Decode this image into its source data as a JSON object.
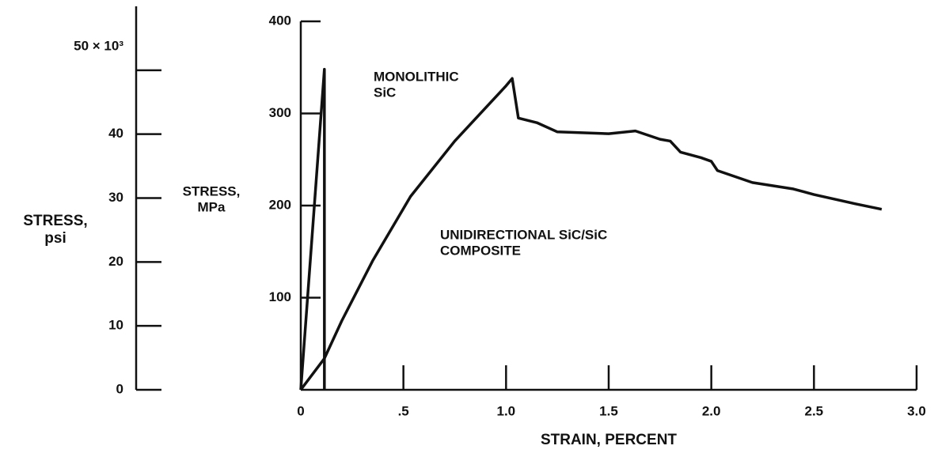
{
  "chart_data": {
    "type": "line",
    "xlabel": "STRAIN, PERCENT",
    "ylabel": [
      "STRESS,",
      "MPa"
    ],
    "y2label": [
      "STRESS,",
      "psi"
    ],
    "xlim": [
      0,
      3.0
    ],
    "xticks": [
      0,
      {
        "value": 0.5,
        "label": ".5"
      },
      {
        "value": 1.0,
        "label": "1.0"
      },
      1.5,
      {
        "value": 2.0,
        "label": "2.0"
      },
      2.5,
      {
        "value": 3.0,
        "label": "3.0"
      }
    ],
    "ylim": [
      0,
      400
    ],
    "yticks": [
      100,
      200,
      300,
      400
    ],
    "y2lim": [
      0,
      60
    ],
    "y2ticks": [
      0,
      10,
      20,
      30,
      40,
      {
        "value": 50,
        "label": "50 × 10³"
      }
    ],
    "series": [
      {
        "color": "#111111",
        "x": [
          0,
          0.115,
          0.115
        ],
        "values": [
          0,
          348,
          0
        ]
      },
      {
        "color": "#111111",
        "x": [
          0,
          0.115,
          0.2,
          0.35,
          0.535,
          0.75,
          1.0,
          1.03,
          1.06,
          1.15,
          1.25,
          1.5,
          1.63,
          1.75,
          1.8,
          1.85,
          1.95,
          2.0,
          2.03,
          2.2,
          2.4,
          2.5,
          2.7,
          2.83
        ],
        "values": [
          0,
          34,
          75,
          140,
          210,
          270,
          330,
          338,
          295,
          290,
          280,
          278,
          281,
          272,
          270,
          258,
          252,
          248,
          238,
          225,
          218,
          212,
          202,
          196
        ]
      }
    ],
    "annotations": [
      {
        "lines": [
          "MONOLITHIC",
          "SiC"
        ]
      },
      {
        "lines": [
          "UNIDIRECTIONAL SiC/SiC",
          "COMPOSITE"
        ]
      }
    ]
  }
}
